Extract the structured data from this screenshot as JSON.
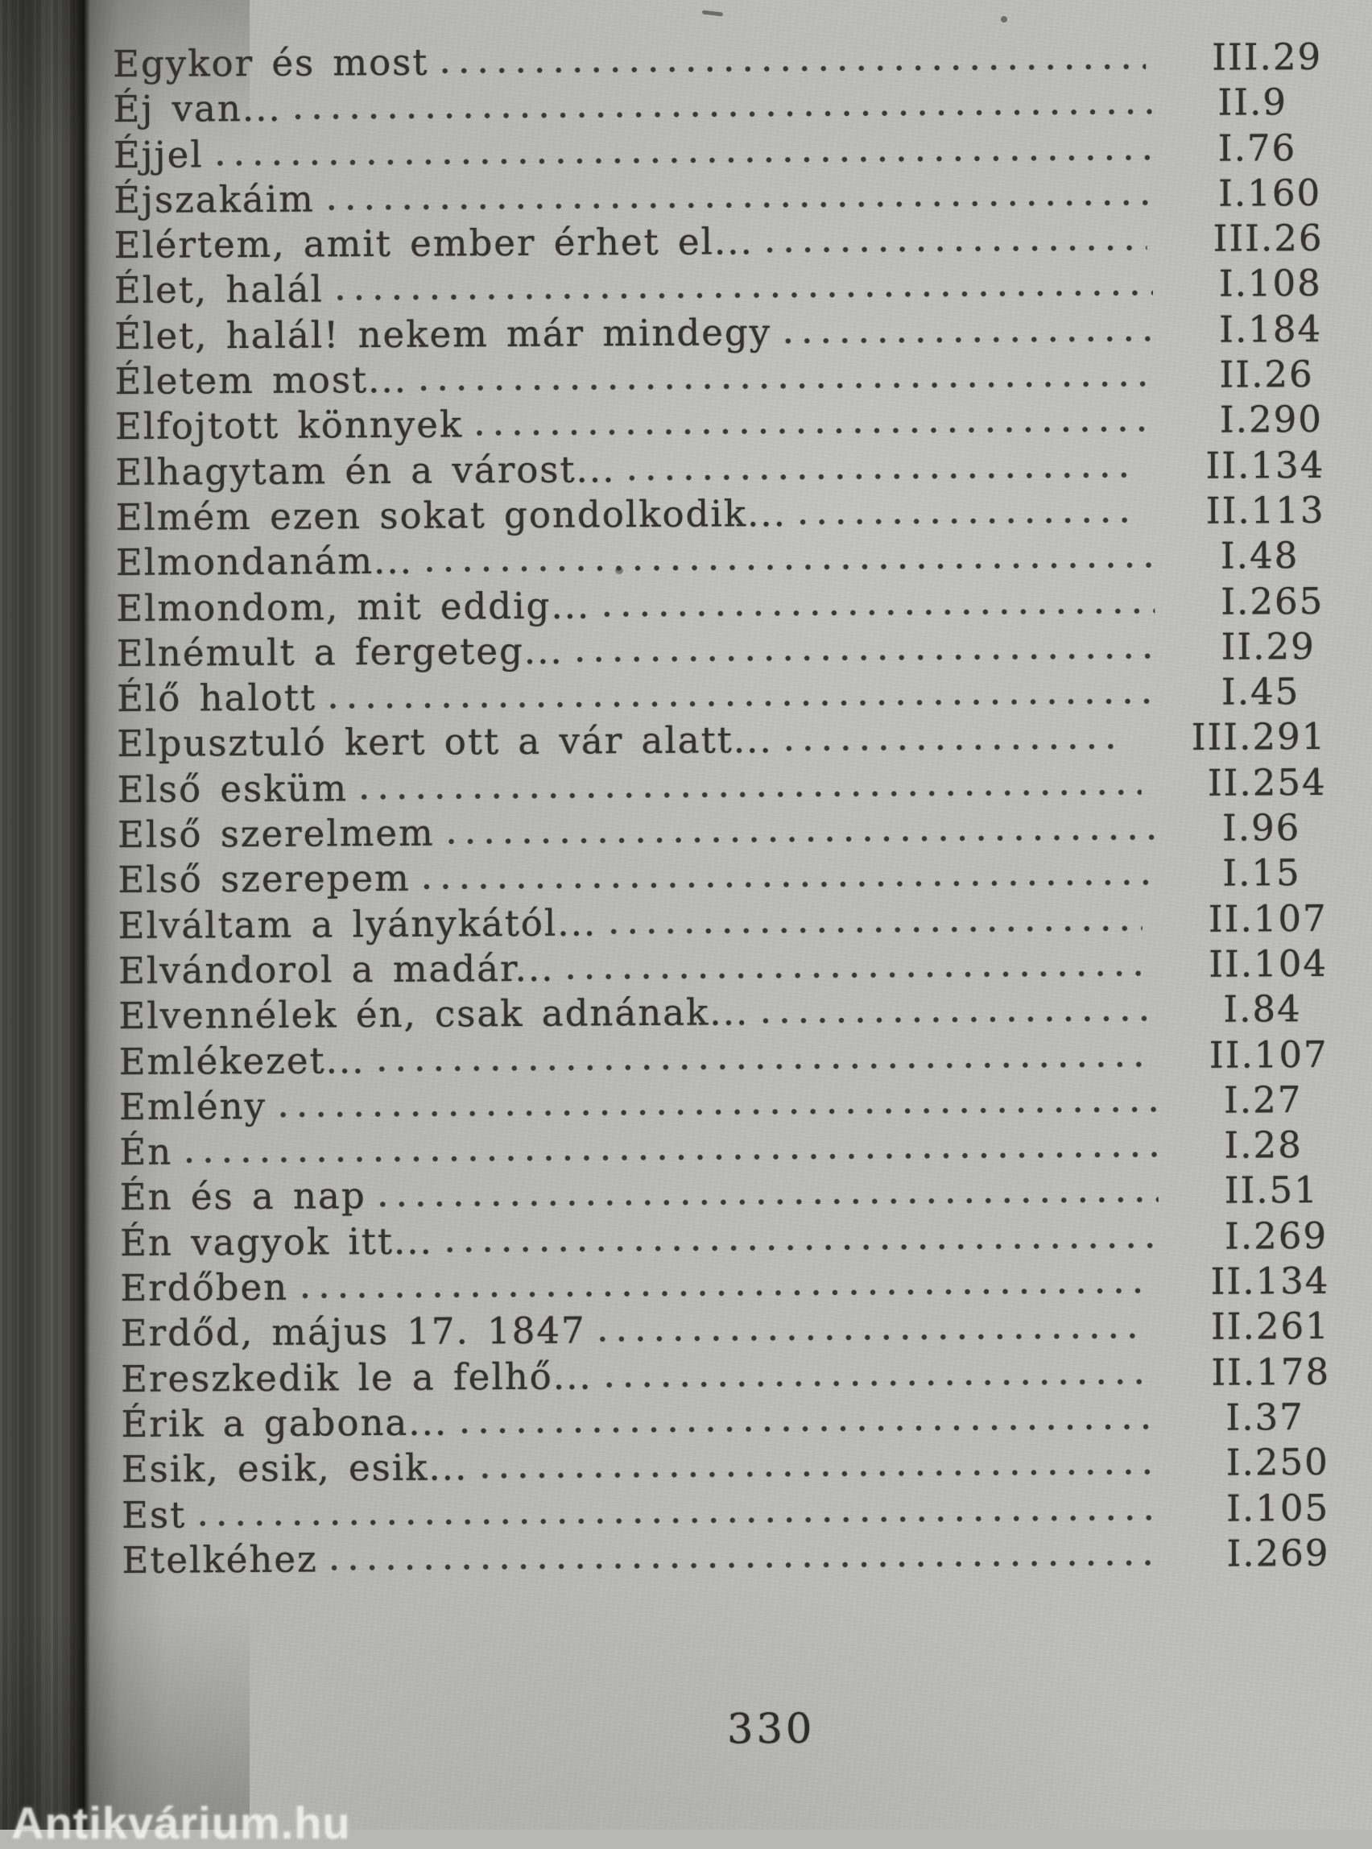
{
  "page": {
    "number": "330"
  },
  "watermark": {
    "text": "Antikvárium.hu"
  },
  "index": {
    "entries": [
      {
        "title": "Egykor és most",
        "ref": "III.29"
      },
      {
        "title": "Éj van...",
        "ref": "II.9"
      },
      {
        "title": "Éjjel",
        "ref": "I.76"
      },
      {
        "title": "Éjszakáim",
        "ref": "I.160"
      },
      {
        "title": "Elértem, amit ember érhet el...",
        "ref": "III.26"
      },
      {
        "title": "Élet, halál",
        "ref": "I.108"
      },
      {
        "title": "Élet, halál! nekem már mindegy",
        "ref": "I.184"
      },
      {
        "title": "Életem most...",
        "ref": "II.26"
      },
      {
        "title": "Elfojtott könnyek",
        "ref": "I.290"
      },
      {
        "title": "Elhagytam én a várost...",
        "ref": "II.134"
      },
      {
        "title": "Elmém ezen sokat gondolkodik...",
        "ref": "II.113"
      },
      {
        "title": "Elmondanám...",
        "ref": "I.48"
      },
      {
        "title": "Elmondom, mit eddig...",
        "ref": "I.265"
      },
      {
        "title": "Elnémult a fergeteg...",
        "ref": "II.29"
      },
      {
        "title": "Élő halott",
        "ref": "I.45"
      },
      {
        "title": "Elpusztuló kert ott a vár alatt...",
        "ref": "III.291"
      },
      {
        "title": "Első esküm",
        "ref": "II.254"
      },
      {
        "title": "Első szerelmem",
        "ref": "I.96"
      },
      {
        "title": "Első szerepem",
        "ref": "I.15"
      },
      {
        "title": "Elváltam a lyánykától...",
        "ref": "II.107"
      },
      {
        "title": "Elvándorol a madár...",
        "ref": "II.104"
      },
      {
        "title": "Elvennélek én, csak adnának...",
        "ref": "I.84"
      },
      {
        "title": "Emlékezet...",
        "ref": "II.107"
      },
      {
        "title": "Emlény",
        "ref": "I.27"
      },
      {
        "title": "Én",
        "ref": "I.28"
      },
      {
        "title": "Én és a nap",
        "ref": "II.51"
      },
      {
        "title": "Én vagyok itt...",
        "ref": "I.269"
      },
      {
        "title": "Erdőben",
        "ref": "II.134"
      },
      {
        "title": "Erdőd, május 17. 1847",
        "ref": "II.261"
      },
      {
        "title": "Ereszkedik le a felhő...",
        "ref": "II.178"
      },
      {
        "title": "Érik a gabona...",
        "ref": "I.37"
      },
      {
        "title": "Esik, esik, esik...",
        "ref": "I.250"
      },
      {
        "title": "Est",
        "ref": "I.105"
      },
      {
        "title": "Etelkéhez",
        "ref": "I.269"
      }
    ]
  }
}
